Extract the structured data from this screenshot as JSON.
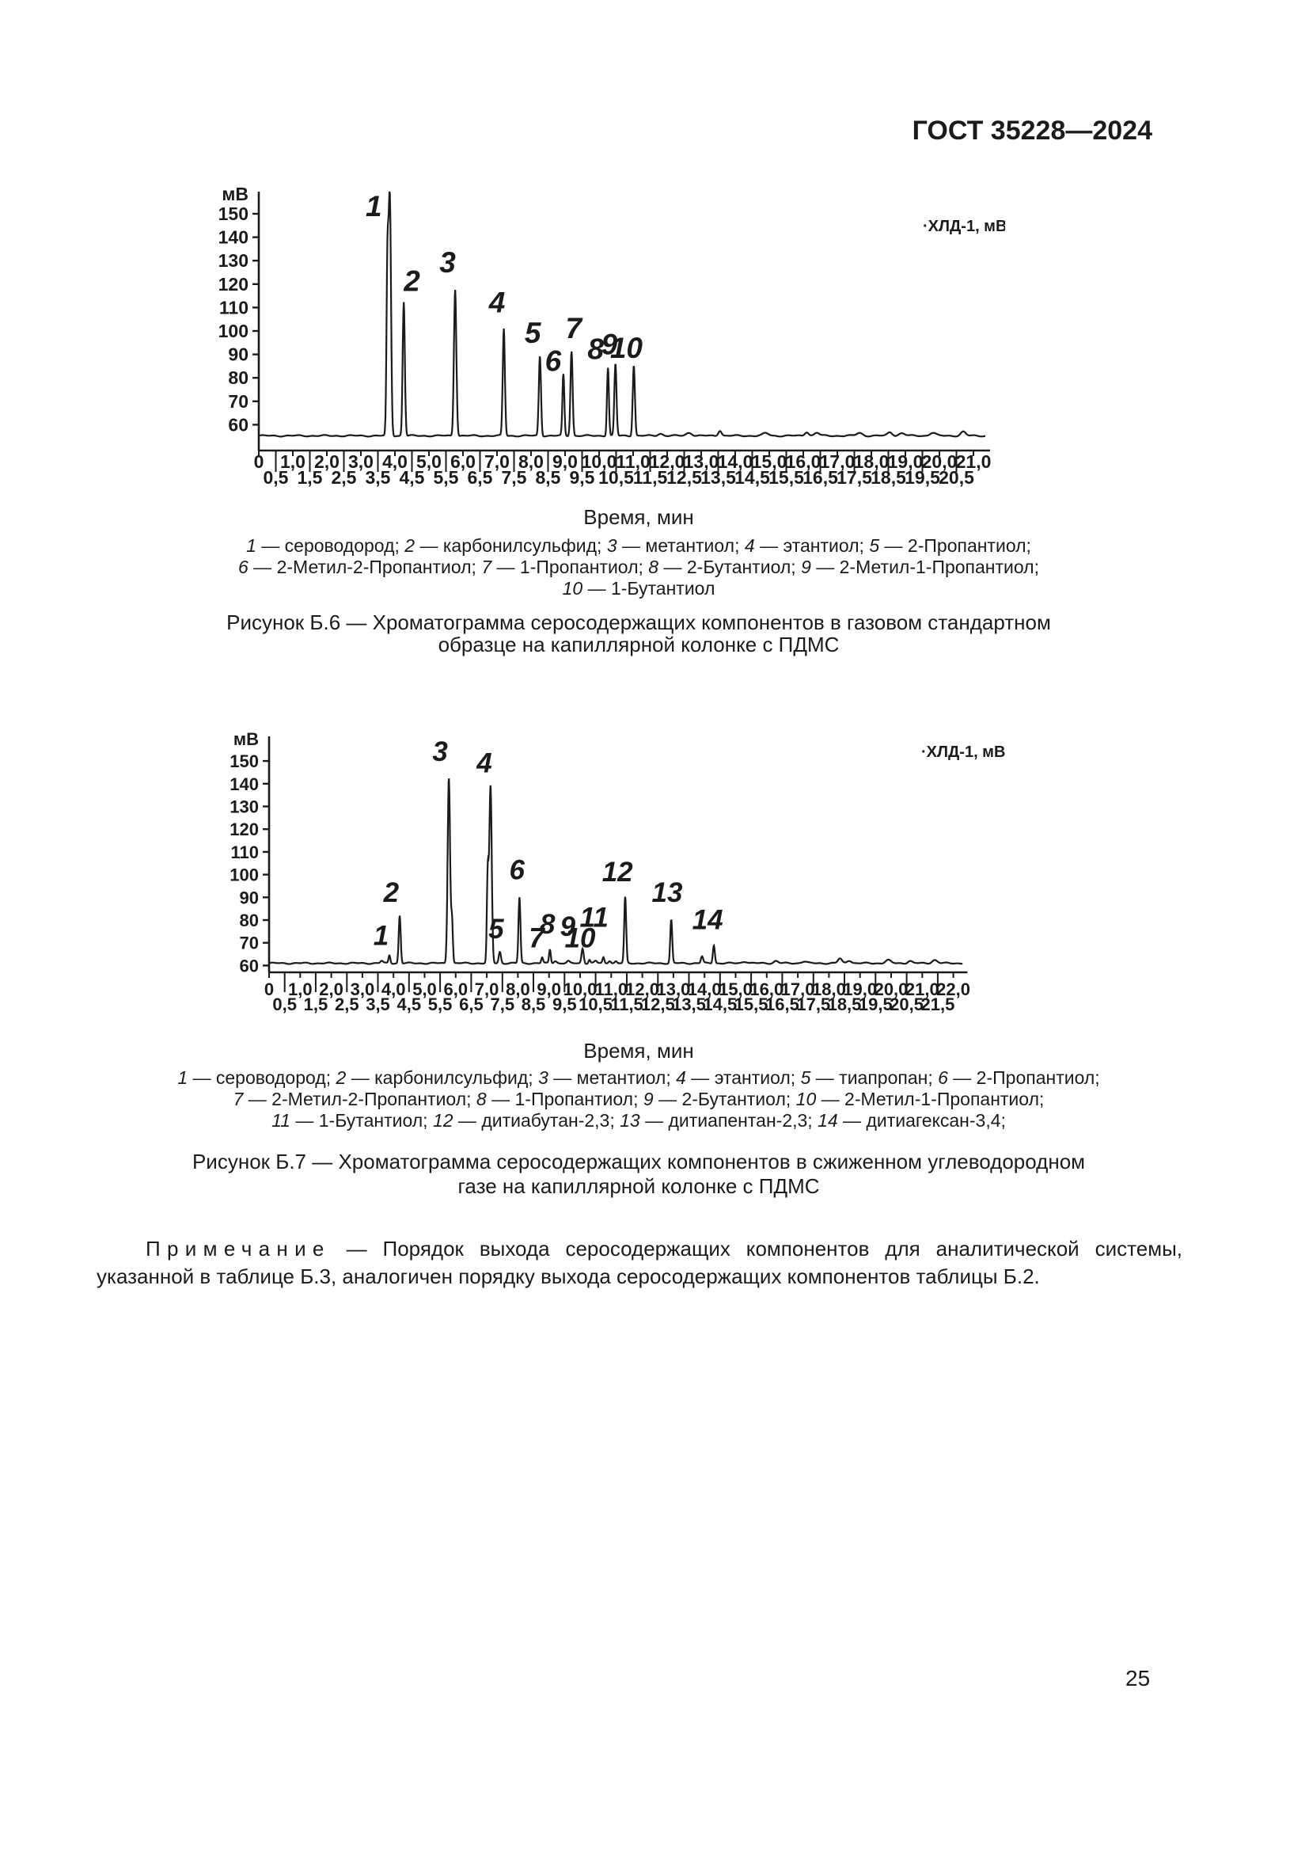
{
  "page": {
    "header": "ГОСТ 35228—2024",
    "page_number": "25"
  },
  "figure_b6": {
    "time_axis_label": "Время, мин",
    "legend_lines": [
      [
        [
          "i",
          "1"
        ],
        [
          "n",
          " — сероводород; "
        ],
        [
          "i",
          "2"
        ],
        [
          "n",
          " — карбонилсульфид; "
        ],
        [
          "i",
          "3"
        ],
        [
          "n",
          " — метантиол; "
        ],
        [
          "i",
          "4"
        ],
        [
          "n",
          " — этантиол; "
        ],
        [
          "i",
          "5"
        ],
        [
          "n",
          " — 2-Пропантиол;"
        ]
      ],
      [
        [
          "i",
          "6"
        ],
        [
          "n",
          " — 2-Метил-2-Пропантиол; "
        ],
        [
          "i",
          "7"
        ],
        [
          "n",
          " — 1-Пропантиол; "
        ],
        [
          "i",
          "8"
        ],
        [
          "n",
          " — 2-Бутантиол; "
        ],
        [
          "i",
          "9"
        ],
        [
          "n",
          " — 2-Метил-1-Пропантиол;"
        ]
      ],
      [
        [
          "i",
          "10"
        ],
        [
          "n",
          " — 1-Бутантиол"
        ]
      ]
    ],
    "caption_lines": [
      "Рисунок Б.6 — Хроматограмма серосодержащих компонентов в газовом стандартном",
      "образце на капиллярной колонке с ПДМС"
    ]
  },
  "figure_b7": {
    "time_axis_label": "Время, мин",
    "legend_lines": [
      [
        [
          "i",
          "1"
        ],
        [
          "n",
          " — сероводород; "
        ],
        [
          "i",
          "2"
        ],
        [
          "n",
          " — карбонилсульфид; "
        ],
        [
          "i",
          "3"
        ],
        [
          "n",
          " — метантиол; "
        ],
        [
          "i",
          "4"
        ],
        [
          "n",
          " — этантиол; "
        ],
        [
          "i",
          "5"
        ],
        [
          "n",
          " — тиапропан; "
        ],
        [
          "i",
          "6"
        ],
        [
          "n",
          " — 2-Пропантиол;"
        ]
      ],
      [
        [
          "i",
          "7"
        ],
        [
          "n",
          " — 2-Метил-2-Пропантиол; "
        ],
        [
          "i",
          "8"
        ],
        [
          "n",
          " — 1-Пропантиол; "
        ],
        [
          "i",
          "9"
        ],
        [
          "n",
          " — 2-Бутантиол; "
        ],
        [
          "i",
          "10"
        ],
        [
          "n",
          " — 2-Метил-1-Пропантиол;"
        ]
      ],
      [
        [
          "i",
          "11"
        ],
        [
          "n",
          " — 1-Бутантиол; "
        ],
        [
          "i",
          "12"
        ],
        [
          "n",
          " — дитиабутан-2,3; "
        ],
        [
          "i",
          "13"
        ],
        [
          "n",
          " — дитиапентан-2,3; "
        ],
        [
          "i",
          "14"
        ],
        [
          "n",
          " — дитиагексан-3,4;"
        ]
      ]
    ],
    "caption_lines": [
      "Рисунок Б.7 — Хроматограмма серосодержащих компонентов в сжиженном углеводородном",
      "газе на капиллярной колонке с ПДМС"
    ]
  },
  "note": {
    "label": "Примечание",
    "text": " — Порядок выхода серосодержащих компонентов для аналитической системы, указанной в таблице Б.3, аналогичен порядку выхода серосодержащих компонентов таблицы Б.2."
  },
  "ink_color": "#1b1b1b",
  "chart_data": [
    {
      "type": "line",
      "figure": "Б.6",
      "detector_label": "·ХЛД-1, мВ",
      "y_axis_unit": "мВ",
      "x_axis_label": "Время, мин",
      "xlim": [
        0,
        21.35
      ],
      "ylim": [
        49,
        158
      ],
      "y_ticks": [
        60,
        70,
        80,
        90,
        100,
        110,
        120,
        130,
        140,
        150
      ],
      "x_tick_step_min": 0.5,
      "baseline_mV": 55.3,
      "peaks": [
        {
          "n": "1",
          "time_min": 3.85,
          "apex_mV": 156,
          "label_at": [
            3.38,
            149
          ],
          "w": 0.05
        },
        {
          "n": "2",
          "time_min": 4.26,
          "apex_mV": 112.5,
          "label_at": [
            4.5,
            117
          ],
          "w": 0.045
        },
        {
          "n": "3",
          "time_min": 5.77,
          "apex_mV": 118,
          "label_at": [
            5.55,
            125
          ],
          "w": 0.05
        },
        {
          "n": "4",
          "time_min": 7.2,
          "apex_mV": 101,
          "label_at": [
            7.0,
            108
          ],
          "w": 0.045
        },
        {
          "n": "5",
          "time_min": 8.26,
          "apex_mV": 89.5,
          "label_at": [
            8.05,
            95
          ],
          "w": 0.045
        },
        {
          "n": "6",
          "time_min": 8.95,
          "apex_mV": 81.5,
          "label_at": [
            8.65,
            83
          ],
          "w": 0.04
        },
        {
          "n": "7",
          "time_min": 9.19,
          "apex_mV": 91.5,
          "label_at": [
            9.25,
            97
          ],
          "w": 0.045
        },
        {
          "n": "8",
          "time_min": 10.26,
          "apex_mV": 84.5,
          "label_at": [
            9.9,
            88
          ],
          "w": 0.04
        },
        {
          "n": "9",
          "time_min": 10.48,
          "apex_mV": 86,
          "label_at": [
            10.3,
            90
          ],
          "w": 0.045
        },
        {
          "n": "10",
          "time_min": 11.02,
          "apex_mV": 85.5,
          "label_at": [
            10.8,
            88.5
          ],
          "w": 0.045
        }
      ],
      "minor_features": [
        {
          "time_min": 3.78,
          "apex_mV": 125,
          "w": 0.04
        },
        {
          "time_min": 11.8,
          "apex_mV": 56.2,
          "w": 0.1
        },
        {
          "time_min": 12.65,
          "apex_mV": 56.6,
          "w": 0.12
        },
        {
          "time_min": 13.55,
          "apex_mV": 57.6,
          "w": 0.07
        },
        {
          "time_min": 14.9,
          "apex_mV": 56.4,
          "w": 0.12
        },
        {
          "time_min": 16.1,
          "apex_mV": 57.0,
          "w": 0.08
        },
        {
          "time_min": 16.4,
          "apex_mV": 56.6,
          "w": 0.1
        },
        {
          "time_min": 17.65,
          "apex_mV": 56.5,
          "w": 0.12
        },
        {
          "time_min": 18.55,
          "apex_mV": 56.8,
          "w": 0.1
        },
        {
          "time_min": 18.9,
          "apex_mV": 56.4,
          "w": 0.12
        },
        {
          "time_min": 19.8,
          "apex_mV": 56.6,
          "w": 0.12
        },
        {
          "time_min": 20.7,
          "apex_mV": 57.0,
          "w": 0.1
        }
      ]
    },
    {
      "type": "line",
      "figure": "Б.7",
      "detector_label": "·ХЛД-1, мВ",
      "y_axis_unit": "мВ",
      "x_axis_label": "Время, мин",
      "xlim": [
        0,
        22.3
      ],
      "ylim": [
        57,
        158
      ],
      "y_ticks": [
        60,
        70,
        80,
        90,
        100,
        110,
        120,
        130,
        140,
        150
      ],
      "x_tick_step_min": 0.5,
      "baseline_mV": 61,
      "peaks": [
        {
          "n": "1",
          "time_min": 3.87,
          "apex_mV": 64.5,
          "label_at": [
            3.6,
            69
          ],
          "w": 0.04
        },
        {
          "n": "2",
          "time_min": 4.2,
          "apex_mV": 82,
          "label_at": [
            3.93,
            88
          ],
          "w": 0.045
        },
        {
          "n": "3",
          "time_min": 5.78,
          "apex_mV": 143,
          "label_at": [
            5.5,
            150
          ],
          "w": 0.055
        },
        {
          "n": "4",
          "time_min": 7.12,
          "apex_mV": 139,
          "label_at": [
            6.92,
            145
          ],
          "w": 0.055
        },
        {
          "n": "5",
          "time_min": 7.42,
          "apex_mV": 66,
          "label_at": [
            7.3,
            72
          ],
          "w": 0.05
        },
        {
          "n": "6",
          "time_min": 8.05,
          "apex_mV": 90,
          "label_at": [
            7.97,
            98
          ],
          "w": 0.045
        },
        {
          "n": "7",
          "time_min": 8.78,
          "apex_mV": 63.5,
          "label_at": [
            8.6,
            68
          ],
          "w": 0.04
        },
        {
          "n": "8",
          "time_min": 9.03,
          "apex_mV": 67,
          "label_at": [
            8.95,
            74
          ],
          "w": 0.04
        },
        {
          "n": "9",
          "time_min": 10.08,
          "apex_mV": 67.5,
          "label_at": [
            9.6,
            73
          ],
          "w": 0.05
        },
        {
          "n": "10",
          "time_min": 10.3,
          "apex_mV": 62.5,
          "label_at": [
            10.0,
            68
          ],
          "w": 0.04
        },
        {
          "n": "11",
          "time_min": 10.75,
          "apex_mV": 63.5,
          "label_at": [
            10.45,
            77
          ],
          "w": 0.04
        },
        {
          "n": "12",
          "time_min": 11.45,
          "apex_mV": 90,
          "label_at": [
            11.2,
            97
          ],
          "w": 0.045
        },
        {
          "n": "13",
          "time_min": 12.93,
          "apex_mV": 80,
          "label_at": [
            12.8,
            88
          ],
          "w": 0.045
        },
        {
          "n": "14",
          "time_min": 14.3,
          "apex_mV": 69,
          "label_at": [
            14.1,
            76
          ],
          "w": 0.045
        }
      ],
      "minor_features": [
        {
          "time_min": 5.88,
          "apex_mV": 80,
          "w": 0.04
        },
        {
          "time_min": 7.03,
          "apex_mV": 100,
          "w": 0.04
        },
        {
          "time_min": 3.62,
          "apex_mV": 62,
          "w": 0.06
        },
        {
          "time_min": 9.2,
          "apex_mV": 62,
          "w": 0.07
        },
        {
          "time_min": 9.62,
          "apex_mV": 61.8,
          "w": 0.06
        },
        {
          "time_min": 10.5,
          "apex_mV": 62,
          "w": 0.06
        },
        {
          "time_min": 10.95,
          "apex_mV": 62.2,
          "w": 0.06
        },
        {
          "time_min": 11.15,
          "apex_mV": 61.8,
          "w": 0.05
        },
        {
          "time_min": 13.92,
          "apex_mV": 64,
          "w": 0.05
        },
        {
          "time_min": 15.3,
          "apex_mV": 61.8,
          "w": 0.12
        },
        {
          "time_min": 16.3,
          "apex_mV": 62,
          "w": 0.1
        },
        {
          "time_min": 17.2,
          "apex_mV": 61.8,
          "w": 0.12
        },
        {
          "time_min": 18.35,
          "apex_mV": 63,
          "w": 0.09
        },
        {
          "time_min": 18.65,
          "apex_mV": 62.3,
          "w": 0.1
        },
        {
          "time_min": 19.9,
          "apex_mV": 62.3,
          "w": 0.12
        },
        {
          "time_min": 20.6,
          "apex_mV": 62,
          "w": 0.1
        },
        {
          "time_min": 21.4,
          "apex_mV": 62.4,
          "w": 0.12
        }
      ]
    }
  ]
}
